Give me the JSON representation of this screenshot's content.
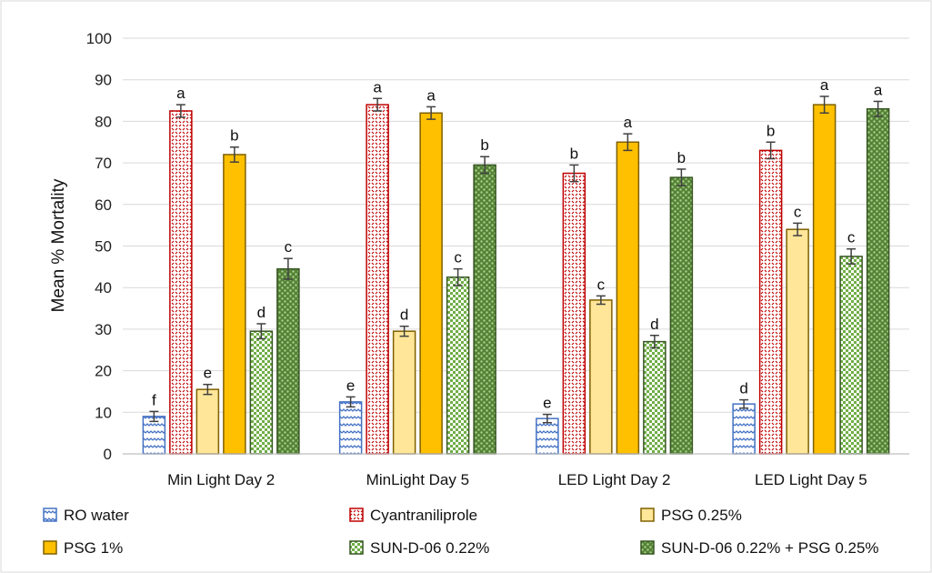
{
  "chart_data": {
    "type": "bar",
    "title": "",
    "xlabel": "",
    "ylabel": "Mean % Mortality",
    "ylim": [
      0,
      100
    ],
    "yticks": [
      0,
      10,
      20,
      30,
      40,
      50,
      60,
      70,
      80,
      90,
      100
    ],
    "grid": true,
    "legend_position": "bottom",
    "categories": [
      "Min Light Day 2",
      "MinLight Day 5",
      "LED Light Day 2",
      "LED Light Day 5"
    ],
    "series": [
      {
        "name": "RO water",
        "color": "#4472C4",
        "pattern": "wave",
        "values": [
          9,
          12.5,
          8.5,
          12
        ],
        "errors": [
          1.2,
          1.2,
          1.0,
          1.0
        ],
        "letters": [
          "f",
          "e",
          "e",
          "d"
        ]
      },
      {
        "name": "Cyantraniliprole",
        "color": "#C00000",
        "pattern": "dots",
        "values": [
          82.5,
          84,
          67.5,
          73
        ],
        "errors": [
          1.5,
          1.5,
          2.0,
          2.0
        ],
        "letters": [
          "a",
          "a",
          "b",
          "b"
        ]
      },
      {
        "name": "PSG 0.25%",
        "color": "#FFE699",
        "pattern": "solid",
        "values": [
          15.5,
          29.5,
          37,
          54
        ],
        "errors": [
          1.2,
          1.2,
          1.0,
          1.5
        ],
        "letters": [
          "e",
          "d",
          "c",
          "c"
        ]
      },
      {
        "name": "PSG 1%",
        "color": "#FFC000",
        "pattern": "solid",
        "values": [
          72,
          82,
          75,
          84
        ],
        "errors": [
          1.8,
          1.5,
          2.0,
          2.0
        ],
        "letters": [
          "b",
          "a",
          "a",
          "a"
        ]
      },
      {
        "name": "SUN-D-06 0.22%",
        "color": "#A9D18E",
        "pattern": "check",
        "values": [
          29.5,
          42.5,
          27,
          47.5
        ],
        "errors": [
          1.8,
          2.0,
          1.5,
          1.8
        ],
        "letters": [
          "d",
          "c",
          "d",
          "c"
        ]
      },
      {
        "name": "SUN-D-06 0.22% + PSG 0.25%",
        "color": "#70AD47",
        "pattern": "checkdark",
        "values": [
          44.5,
          69.5,
          66.5,
          83
        ],
        "errors": [
          2.5,
          2.0,
          2.0,
          1.8
        ],
        "letters": [
          "c",
          "b",
          "b",
          "a"
        ]
      }
    ]
  }
}
